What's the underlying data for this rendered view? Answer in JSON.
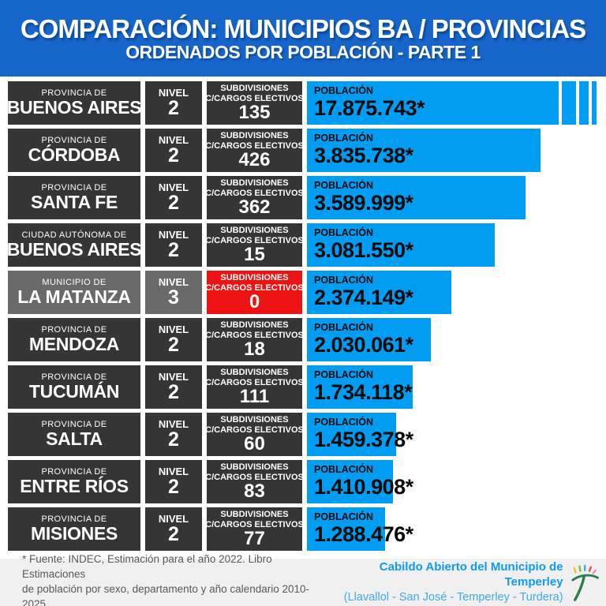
{
  "header": {
    "title": "COMPARACIÓN: MUNICIPIOS BA / PROVINCIAS",
    "subtitle": "ORDENADOS POR POBLACIÓN - PARTE 1"
  },
  "columns": {
    "nivel_label": "NIVEL",
    "subdiv_line1": "SUBDIVISIONES",
    "subdiv_line2": "C/CARGOS ELECTIVOS",
    "poblacion_label": "POBLACIÓN"
  },
  "rows": [
    {
      "prefix": "PROVINCIA DE",
      "name": "BUENOS AIRES",
      "nivel": "2",
      "subdivisiones": "135",
      "poblacion": 17875743,
      "poblacion_label": "17.875.743*",
      "highlight": false,
      "subdiv_alert": false,
      "truncated": true
    },
    {
      "prefix": "PROVINCIA DE",
      "name": "CÓRDOBA",
      "nivel": "2",
      "subdivisiones": "426",
      "poblacion": 3835738,
      "poblacion_label": "3.835.738*",
      "highlight": false,
      "subdiv_alert": false,
      "truncated": false
    },
    {
      "prefix": "PROVINCIA DE",
      "name": "SANTA FE",
      "nivel": "2",
      "subdivisiones": "362",
      "poblacion": 3589999,
      "poblacion_label": "3.589.999*",
      "highlight": false,
      "subdiv_alert": false,
      "truncated": false
    },
    {
      "prefix": "CIUDAD AUTÓNOMA DE",
      "name": "BUENOS AIRES",
      "nivel": "2",
      "subdivisiones": "15",
      "poblacion": 3081550,
      "poblacion_label": "3.081.550*",
      "highlight": false,
      "subdiv_alert": false,
      "truncated": false
    },
    {
      "prefix": "MUNICIPIO DE",
      "name": "LA MATANZA",
      "nivel": "3",
      "subdivisiones": "0",
      "poblacion": 2374149,
      "poblacion_label": "2.374.149*",
      "highlight": true,
      "subdiv_alert": true,
      "truncated": false
    },
    {
      "prefix": "PROVINCIA DE",
      "name": "MENDOZA",
      "nivel": "2",
      "subdivisiones": "18",
      "poblacion": 2030061,
      "poblacion_label": "2.030.061*",
      "highlight": false,
      "subdiv_alert": false,
      "truncated": false
    },
    {
      "prefix": "PROVINCIA DE",
      "name": "TUCUMÁN",
      "nivel": "2",
      "subdivisiones": "111",
      "poblacion": 1734118,
      "poblacion_label": "1.734.118*",
      "highlight": false,
      "subdiv_alert": false,
      "truncated": false
    },
    {
      "prefix": "PROVINCIA DE",
      "name": "SALTA",
      "nivel": "2",
      "subdivisiones": "60",
      "poblacion": 1459378,
      "poblacion_label": "1.459.378*",
      "highlight": false,
      "subdiv_alert": false,
      "truncated": false
    },
    {
      "prefix": "PROVINCIA DE",
      "name": "ENTRE RÍOS",
      "nivel": "2",
      "subdivisiones": "83",
      "poblacion": 1410908,
      "poblacion_label": "1.410.908*",
      "highlight": false,
      "subdiv_alert": false,
      "truncated": false
    },
    {
      "prefix": "PROVINCIA DE",
      "name": "MISIONES",
      "nivel": "2",
      "subdivisiones": "77",
      "poblacion": 1288476,
      "poblacion_label": "1.288.476*",
      "highlight": false,
      "subdiv_alert": false,
      "truncated": false
    }
  ],
  "chart_data": {
    "type": "bar",
    "orientation": "horizontal",
    "title": "COMPARACIÓN: MUNICIPIOS BA / PROVINCIAS",
    "subtitle": "ORDENADOS POR POBLACIÓN - PARTE 1",
    "categories": [
      "PROVINCIA DE BUENOS AIRES",
      "PROVINCIA DE CÓRDOBA",
      "PROVINCIA DE SANTA FE",
      "CIUDAD AUTÓNOMA DE BUENOS AIRES",
      "MUNICIPIO DE LA MATANZA",
      "PROVINCIA DE MENDOZA",
      "PROVINCIA DE TUCUMÁN",
      "PROVINCIA DE SALTA",
      "PROVINCIA DE ENTRE RÍOS",
      "PROVINCIA DE MISIONES"
    ],
    "series": [
      {
        "name": "POBLACIÓN",
        "values": [
          17875743,
          3835738,
          3589999,
          3081550,
          2374149,
          2030061,
          1734118,
          1459378,
          1410908,
          1288476
        ]
      },
      {
        "name": "NIVEL",
        "values": [
          2,
          2,
          2,
          2,
          3,
          2,
          2,
          2,
          2,
          2
        ]
      },
      {
        "name": "SUBDIVISIONES C/CARGOS ELECTIVOS",
        "values": [
          135,
          426,
          362,
          15,
          0,
          18,
          111,
          60,
          83,
          77
        ]
      }
    ],
    "value_labels": [
      "17.875.743*",
      "3.835.738*",
      "3.589.999*",
      "3.081.550*",
      "2.374.149*",
      "2.030.061*",
      "1.734.118*",
      "1.459.378*",
      "1.410.908*",
      "1.288.476*"
    ],
    "annotations": [
      "Bar for Provincia de Buenos Aires is truncated with break marks at the right edge",
      "La Matanza row highlighted gray with red subdivisions box showing 0"
    ],
    "legend_position": "none",
    "grid": false
  },
  "footer": {
    "source_line1": "* Fuente: INDEC, Estimación para el año 2022. Libro Estimaciones",
    "source_line2": "de población por sexo, departamento y año calendario 2010-2025",
    "org": "Cabildo Abierto del Municipio de Temperley",
    "localities": "(Llavallol - San José - Temperley - Turdera)"
  },
  "colors": {
    "header_blue": "#1565cb",
    "bar_blue": "#009df2",
    "box_dark": "#353535",
    "box_gray_highlight": "#6a6a6a",
    "alert_red": "#ee1313",
    "footer_bg": "#f0f0f0",
    "footer_text": "#58595b",
    "credit_blue": "#0f9bf2"
  }
}
